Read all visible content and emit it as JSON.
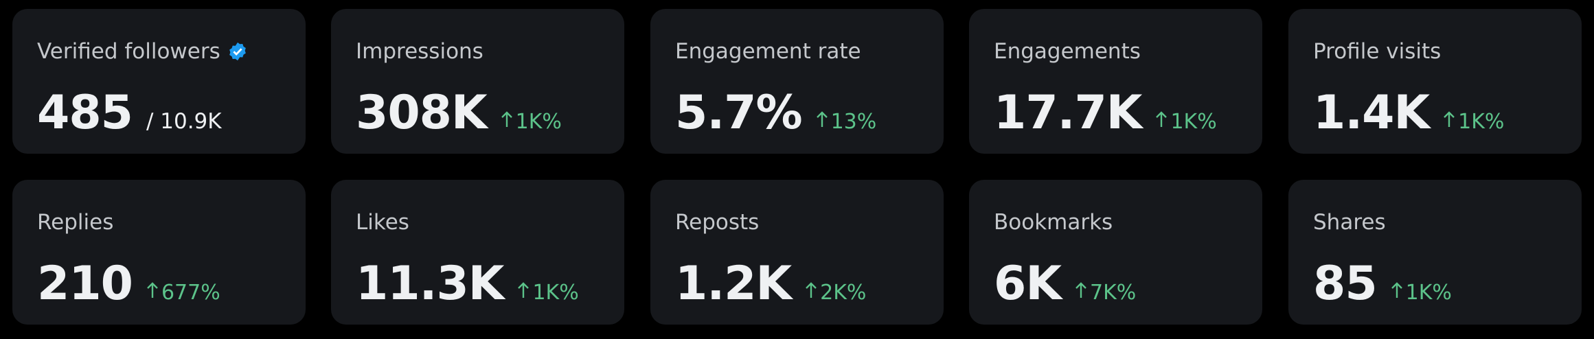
{
  "cards": [
    {
      "label": "Verified followers",
      "value": "485",
      "sub": "/ 10.9K"
    },
    {
      "label": "Impressions",
      "value": "308K",
      "change": "1K%"
    },
    {
      "label": "Engagement rate",
      "value": "5.7%",
      "change": "13%"
    },
    {
      "label": "Engagements",
      "value": "17.7K",
      "change": "1K%"
    },
    {
      "label": "Profile visits",
      "value": "1.4K",
      "change": "1K%"
    },
    {
      "label": "Replies",
      "value": "210",
      "change": "677%"
    },
    {
      "label": "Likes",
      "value": "11.3K",
      "change": "1K%"
    },
    {
      "label": "Reposts",
      "value": "1.2K",
      "change": "2K%"
    },
    {
      "label": "Bookmarks",
      "value": "6K",
      "change": "7K%"
    },
    {
      "label": "Shares",
      "value": "85",
      "change": "1K%"
    }
  ]
}
